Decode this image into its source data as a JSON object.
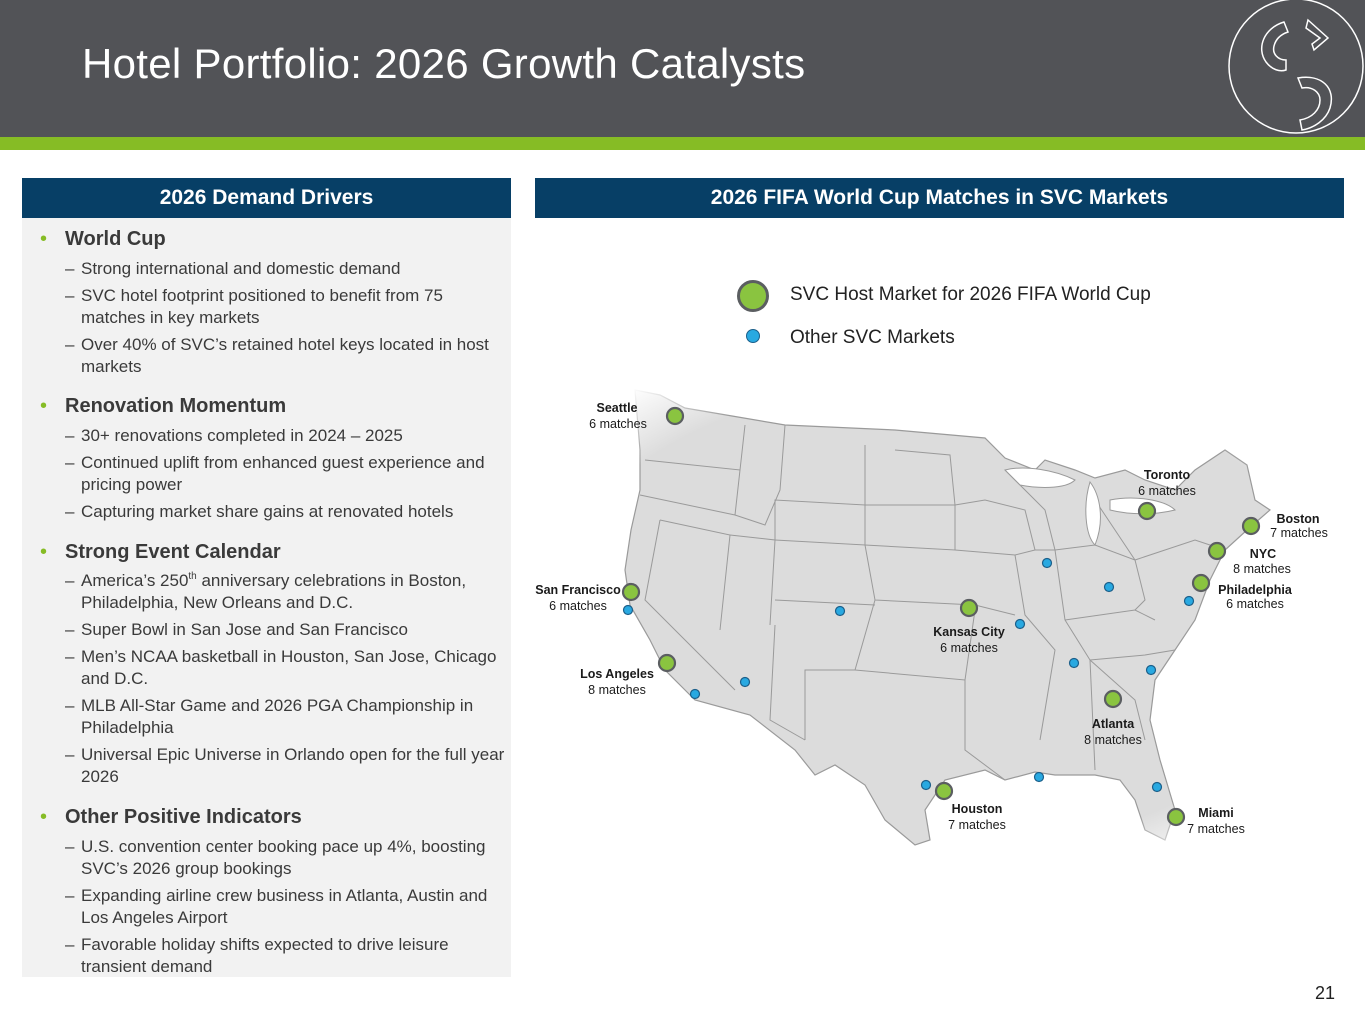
{
  "header": {
    "title": "Hotel Portfolio: 2026 Growth Catalysts"
  },
  "left_panel": {
    "heading": "2026 Demand Drivers",
    "sections": [
      {
        "title": "World Cup",
        "items": [
          "Strong international and domestic demand",
          "SVC hotel footprint positioned to benefit from 75 matches in key markets",
          "Over 40% of SVC’s retained hotel keys located in host markets"
        ]
      },
      {
        "title": "Renovation Momentum",
        "items": [
          "30+ renovations completed in 2024 – 2025",
          "Continued uplift from enhanced guest experience and pricing power",
          "Capturing market share gains at renovated hotels"
        ]
      },
      {
        "title": "Strong Event Calendar",
        "items": [
          "America’s 250",
          "th",
          " anniversary celebrations in Boston, Philadelphia, New Orleans and D.C.",
          "Super Bowl in San Jose and San Francisco",
          "Men’s NCAA basketball in Houston, San Jose, Chicago and D.C.",
          "MLB All-Star Game and 2026 PGA Championship in Philadelphia",
          "Universal Epic Universe in Orlando open for the full year 2026"
        ]
      },
      {
        "title": "Other Positive Indicators",
        "items": [
          "U.S. convention center booking pace up 4%, boosting SVC’s 2026 group bookings",
          "Expanding airline crew business in Atlanta, Austin and Los Angeles Airport",
          "Favorable holiday shifts expected to drive leisure transient demand"
        ]
      }
    ]
  },
  "right_panel": {
    "heading": "2026 FIFA World Cup Matches in SVC Markets",
    "legend": {
      "host": "SVC Host Market for 2026 FIFA World Cup",
      "other": "Other SVC Markets"
    },
    "host_markets": [
      {
        "city": "Seattle",
        "matches": "6 matches"
      },
      {
        "city": "San Francisco",
        "matches": "6 matches"
      },
      {
        "city": "Los Angeles",
        "matches": "8 matches"
      },
      {
        "city": "Kansas City",
        "matches": "6 matches"
      },
      {
        "city": "Houston",
        "matches": "7 matches"
      },
      {
        "city": "Atlanta",
        "matches": "8 matches"
      },
      {
        "city": "Miami",
        "matches": "7 matches"
      },
      {
        "city": "Toronto",
        "matches": "6 matches"
      },
      {
        "city": "Boston",
        "matches": "7 matches"
      },
      {
        "city": "NYC",
        "matches": "8 matches"
      },
      {
        "city": "Philadelphia",
        "matches": "6 matches"
      }
    ]
  },
  "colors": {
    "header_bg": "#525357",
    "accent_green": "#86bc25",
    "panel_blue": "#073f66",
    "host_dot": "#8ac440",
    "other_dot": "#29a9e1"
  },
  "page_number": "21"
}
